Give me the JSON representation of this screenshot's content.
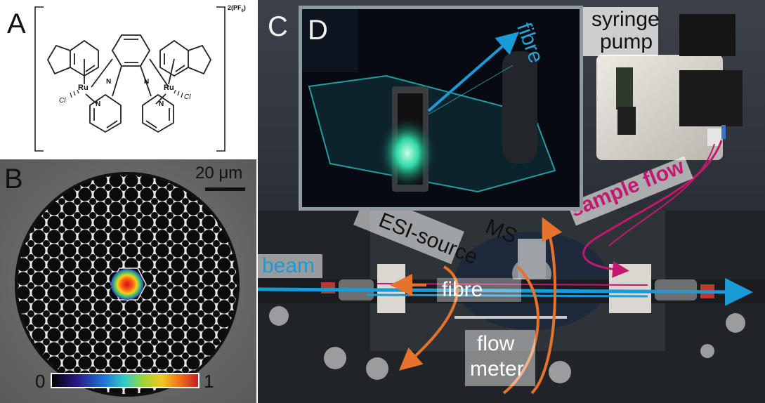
{
  "panels": {
    "a": {
      "letter": "A",
      "counter_ion": "2(PF",
      "counter_ion_sub": "6",
      "counter_ion_close": ")"
    },
    "b": {
      "letter": "B",
      "scale_bar": "20 μm",
      "colorbar_min": "0",
      "colorbar_max": "1"
    },
    "c": {
      "letter": "C"
    },
    "d": {
      "letter": "D",
      "fibre_label": "fibre"
    }
  },
  "molecule": {
    "ru_label": "Ru",
    "cl_label": "Cl",
    "n_label": "N"
  },
  "setup_labels": {
    "syringe_pump": [
      "syringe",
      "pump"
    ],
    "sample_flow": "sample flow",
    "ms": "MS",
    "esi_source": "ESI-source",
    "beam": "beam",
    "fibre": "fibre",
    "flow_meter": [
      "flow",
      "meter"
    ]
  },
  "colors": {
    "beam": "#1a9ad6",
    "sample_flow": "#c2186f",
    "flow_arrows": "#e7722b",
    "fibre_label": "#2aa4d8"
  }
}
